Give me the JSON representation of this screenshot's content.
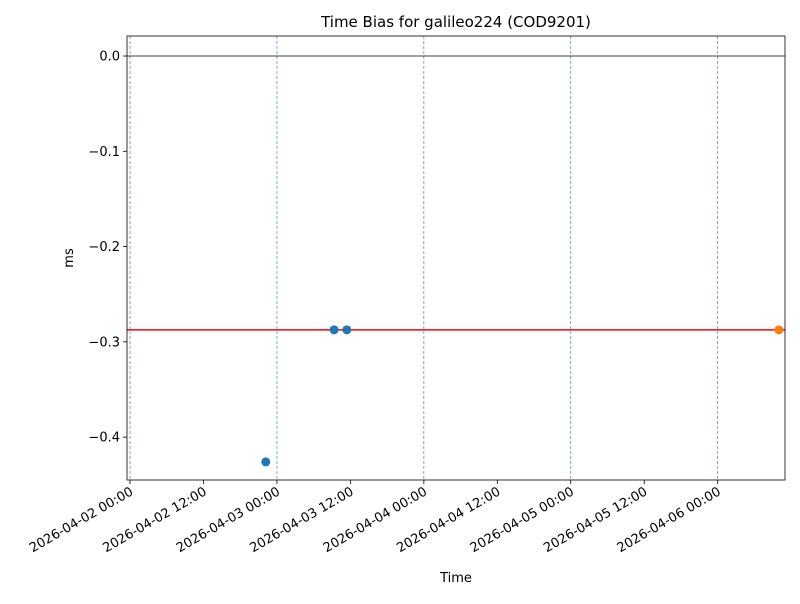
{
  "chart_data": {
    "type": "scatter",
    "title": "Time Bias for galileo224 (COD9201)",
    "xlabel": "Time",
    "ylabel": "ms",
    "xlim": [
      "2026-04-01 23:30",
      "2026-04-06 11:00"
    ],
    "xticks": [
      "2026-04-02 00:00",
      "2026-04-02 12:00",
      "2026-04-03 00:00",
      "2026-04-03 12:00",
      "2026-04-04 00:00",
      "2026-04-04 12:00",
      "2026-04-05 00:00",
      "2026-04-05 12:00",
      "2026-04-06 00:00"
    ],
    "ylim": [
      -0.445,
      0.021
    ],
    "yticks": [
      {
        "value": 0,
        "label": "0.0"
      },
      {
        "value": -0.1,
        "label": "−0.1"
      },
      {
        "value": -0.2,
        "label": "−0.2"
      },
      {
        "value": -0.3,
        "label": "−0.3"
      },
      {
        "value": -0.4,
        "label": "−0.4"
      }
    ],
    "series": [
      {
        "color": "#1f77b4",
        "x": [
          "2026-04-02 22:10",
          "2026-04-03 09:20",
          "2026-04-03 11:25"
        ],
        "values": [
          -0.426,
          -0.2874,
          -0.2874
        ]
      },
      {
        "color": "#ff7f0e",
        "x": [
          "2026-04-06 10:00"
        ],
        "values": [
          -0.2874
        ]
      }
    ],
    "hlines": [
      {
        "y": 0,
        "color": "#000000"
      },
      {
        "y": -0.2874,
        "color": "#ff0000"
      }
    ],
    "vlines": {
      "color": "#1f77b4",
      "dashed": true,
      "x": [
        "2026-04-02 00:00",
        "2026-04-03 00:00",
        "2026-04-04 00:00",
        "2026-04-05 00:00",
        "2026-04-06 00:00"
      ]
    }
  }
}
